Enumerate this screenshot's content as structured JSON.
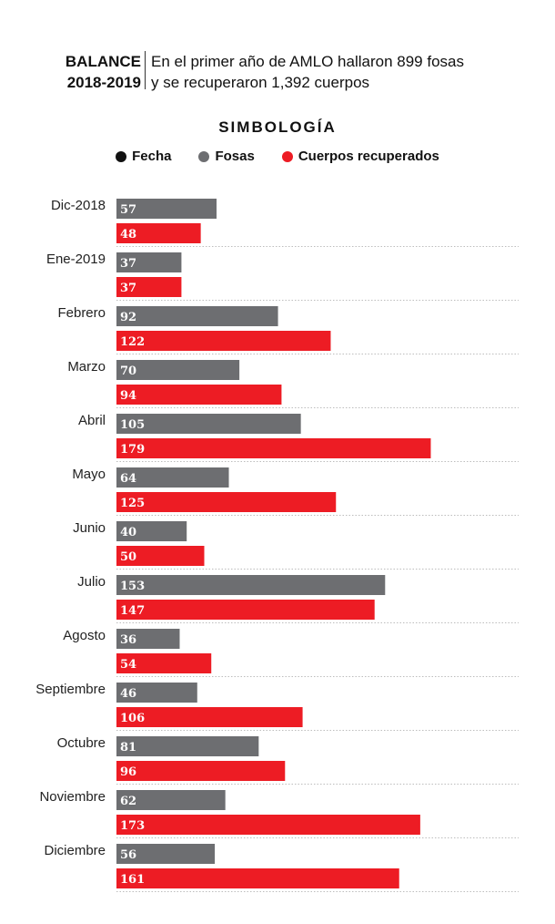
{
  "header": {
    "tag_line1": "BALANCE",
    "tag_line2": "2018-2019",
    "desc_line1": "En el primer año de AMLO hallaron 899 fosas",
    "desc_line2": "y se recuperaron 1,392 cuerpos"
  },
  "legend": {
    "title": "SIMBOLOGÍA",
    "items": [
      {
        "label": "Fecha",
        "color": "#111111"
      },
      {
        "label": "Fosas",
        "color": "#6d6e71"
      },
      {
        "label": "Cuerpos recuperados",
        "color": "#ed1c24"
      }
    ]
  },
  "chart_data": {
    "type": "bar",
    "orientation": "horizontal",
    "categories": [
      "Dic-2018",
      "Ene-2019",
      "Febrero",
      "Marzo",
      "Abril",
      "Mayo",
      "Junio",
      "Julio",
      "Agosto",
      "Septiembre",
      "Octubre",
      "Noviembre",
      "Diciembre"
    ],
    "series": [
      {
        "name": "Fosas",
        "color": "#6d6e71",
        "values": [
          57,
          37,
          92,
          70,
          105,
          64,
          40,
          153,
          36,
          46,
          81,
          62,
          56
        ]
      },
      {
        "name": "Cuerpos recuperados",
        "color": "#ed1c24",
        "values": [
          48,
          37,
          122,
          94,
          179,
          125,
          50,
          147,
          54,
          106,
          96,
          173,
          161
        ]
      }
    ],
    "grid": false
  }
}
